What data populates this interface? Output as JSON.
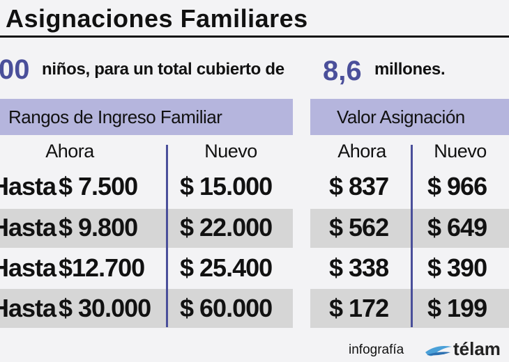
{
  "header": {
    "title": "Asignaciones Familiares"
  },
  "subtitle": {
    "lead": "00",
    "text": "niños, para un total cubierto de",
    "highlight": "8,6",
    "tail": "millones."
  },
  "table": {
    "group_headers": [
      "Rangos de Ingreso Familiar",
      "Valor Asignación"
    ],
    "column_headers": [
      "Ahora",
      "Nuevo",
      "Ahora",
      "Nuevo"
    ],
    "rows": [
      [
        "Hasta",
        "$ 7.500",
        "$ 15.000",
        "$ 837",
        "$ 966"
      ],
      [
        "Hasta",
        "$ 9.800",
        "$ 22.000",
        "$ 562",
        "$ 649"
      ],
      [
        "Hasta",
        "$12.700",
        "$ 25.400",
        "$ 338",
        "$ 390"
      ],
      [
        "Hasta",
        "$ 30.000",
        "$ 60.000",
        "$ 172",
        "$ 199"
      ]
    ]
  },
  "footer": {
    "label": "infografía",
    "brand": "télam"
  }
}
